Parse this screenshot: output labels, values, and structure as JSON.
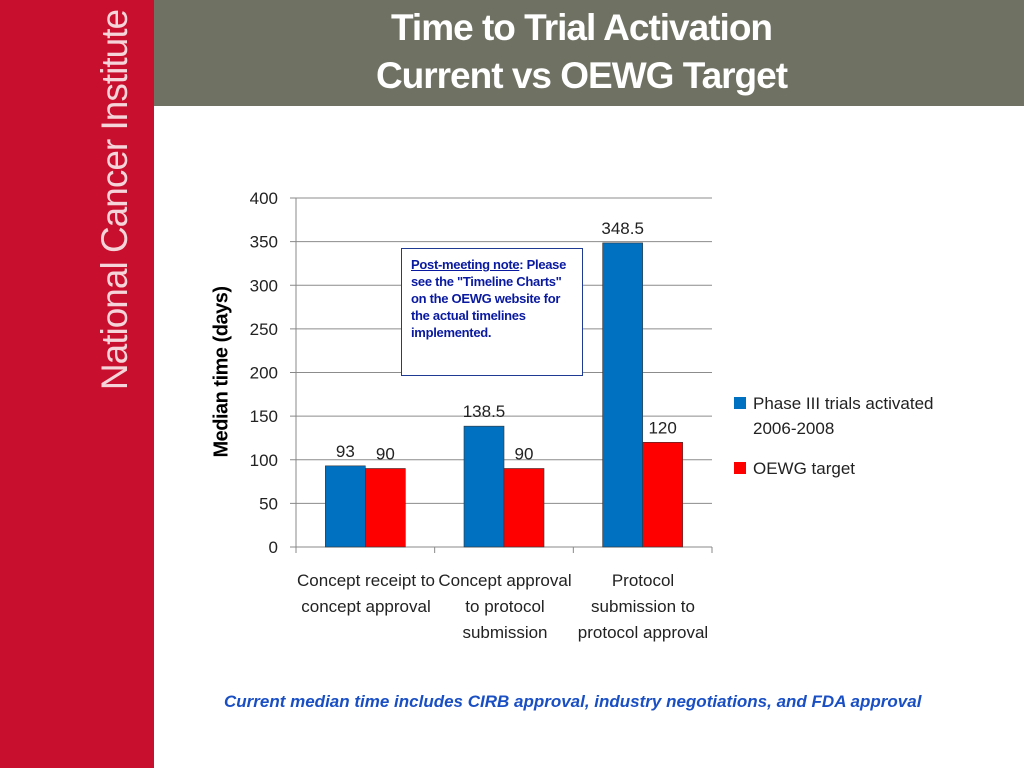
{
  "sidebar": {
    "brand_text": "National Cancer Institute"
  },
  "header": {
    "title_line1": "Time to Trial Activation",
    "title_line2": "Current vs OEWG Target"
  },
  "note": {
    "heading": "Post-meeting note",
    "heading_suffix": ":",
    "body": "Please see the \"Timeline Charts\" on the OEWG website for the actual timelines implemented."
  },
  "footnote": "Current median time includes CIRB approval, industry negotiations, and FDA approval",
  "colors": {
    "series1": "#0070c0",
    "series2": "#ff0000",
    "sidebar": "#c8102e",
    "header": "#6f7263"
  },
  "chart_data": {
    "type": "bar",
    "categories": [
      "Concept receipt to concept approval",
      "Concept approval to protocol submission",
      "Protocol submission to protocol approval"
    ],
    "series": [
      {
        "name": "Phase III trials activated 2006-2008",
        "values": [
          93,
          138.5,
          348.5
        ],
        "labels": [
          "93",
          "138.5",
          "348.5"
        ]
      },
      {
        "name": "OEWG target",
        "values": [
          90,
          90,
          120
        ],
        "labels": [
          "90",
          "90",
          "120"
        ]
      }
    ],
    "ylabel": "Median time (days)",
    "ylim": [
      0,
      400
    ],
    "yticks": [
      0,
      50,
      100,
      150,
      200,
      250,
      300,
      350,
      400
    ],
    "grid": true,
    "legend_position": "right"
  }
}
